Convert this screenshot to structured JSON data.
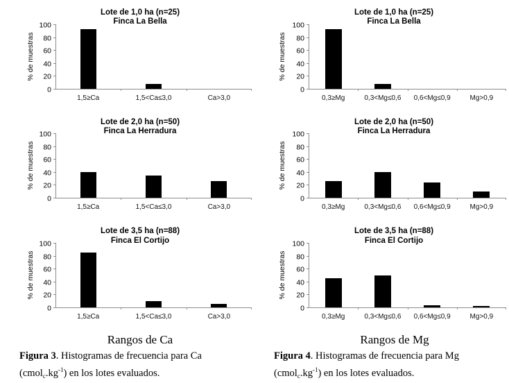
{
  "figures": [
    {
      "id": "ca",
      "range_label": "Rangos de Ca",
      "caption": {
        "label": "Figura 3",
        "text_line1": ". Histogramas de frecuencia para Ca",
        "unit_prefix": "(cmol",
        "unit_sub": "c",
        "unit_mid": ".kg",
        "unit_sup": "-1",
        "text_line2": ") en los lotes evaluados."
      }
    },
    {
      "id": "mg",
      "range_label": "Rangos de Mg",
      "caption": {
        "label": "Figura 4",
        "text_line1": ". Histogramas de frecuencia para Mg",
        "unit_prefix": "(cmol",
        "unit_sub": "c",
        "unit_mid": ".kg",
        "unit_sup": "-1",
        "text_line2": ") en los lotes evaluados."
      }
    }
  ],
  "chart_data": [
    {
      "type": "bar",
      "group": "ca",
      "title": [
        "Lote de 1,0 ha (n=25)",
        "Finca La Bella"
      ],
      "xlabel": "Rangos de Ca",
      "ylabel": "% de muestras",
      "categories": [
        "1,5≥Ca",
        "1,5<Ca≤3,0",
        "Ca>3,0"
      ],
      "values": [
        92,
        8,
        0
      ],
      "ylim": [
        0,
        100
      ],
      "yticks": [
        0,
        20,
        40,
        60,
        80,
        100
      ],
      "grid": false,
      "legend": "none"
    },
    {
      "type": "bar",
      "group": "mg",
      "title": [
        "Lote de 1,0 ha (n=25)",
        "Finca La Bella"
      ],
      "xlabel": "Rangos de Mg",
      "ylabel": "% de muestras",
      "categories": [
        "0,3≥Mg",
        "0,3<Mg≤0,6",
        "0,6<Mg≤0,9",
        "Mg>0,9"
      ],
      "values": [
        92,
        8,
        0,
        0
      ],
      "ylim": [
        0,
        100
      ],
      "yticks": [
        0,
        20,
        40,
        60,
        80,
        100
      ],
      "grid": false,
      "legend": "none"
    },
    {
      "type": "bar",
      "group": "ca",
      "title": [
        "Lote de 2,0 ha (n=50)",
        "Finca La Herradura"
      ],
      "xlabel": "Rangos de Ca",
      "ylabel": "% de muestras",
      "categories": [
        "1,5≥Ca",
        "1,5<Ca≤3,0",
        "Ca>3,0"
      ],
      "values": [
        40,
        34,
        26
      ],
      "ylim": [
        0,
        100
      ],
      "yticks": [
        0,
        20,
        40,
        60,
        80,
        100
      ],
      "grid": false,
      "legend": "none"
    },
    {
      "type": "bar",
      "group": "mg",
      "title": [
        "Lote de 2,0 ha (n=50)",
        "Finca La Herradura"
      ],
      "xlabel": "Rangos de Mg",
      "ylabel": "% de muestras",
      "categories": [
        "0,3≥Mg",
        "0,3<Mg≤0,6",
        "0,6<Mg≤0,9",
        "Mg>0,9"
      ],
      "values": [
        26,
        40,
        24,
        10
      ],
      "ylim": [
        0,
        100
      ],
      "yticks": [
        0,
        20,
        40,
        60,
        80,
        100
      ],
      "grid": false,
      "legend": "none"
    },
    {
      "type": "bar",
      "group": "ca",
      "title": [
        "Lote de 3,5 ha (n=88)",
        "Finca El Cortijo"
      ],
      "xlabel": "Rangos de Ca",
      "ylabel": "% de muestras",
      "categories": [
        "1,5≥Ca",
        "1,5<Ca≤3,0",
        "Ca>3,0"
      ],
      "values": [
        85,
        10,
        5
      ],
      "ylim": [
        0,
        100
      ],
      "yticks": [
        0,
        20,
        40,
        60,
        80,
        100
      ],
      "grid": false,
      "legend": "none"
    },
    {
      "type": "bar",
      "group": "mg",
      "title": [
        "Lote de 3,5 ha (n=88)",
        "Finca El Cortijo"
      ],
      "xlabel": "Rangos de Mg",
      "ylabel": "% de muestras",
      "categories": [
        "0,3≥Mg",
        "0,3<Mg≤0,6",
        "0,6<Mg≤0,9",
        "Mg>0,9"
      ],
      "values": [
        45,
        49,
        3,
        2
      ],
      "ylim": [
        0,
        100
      ],
      "yticks": [
        0,
        20,
        40,
        60,
        80,
        100
      ],
      "grid": false,
      "legend": "none"
    }
  ],
  "colors": {
    "bar": "#000000",
    "axis": "#8c8c8c",
    "text": "#000000",
    "background": "#ffffff"
  }
}
